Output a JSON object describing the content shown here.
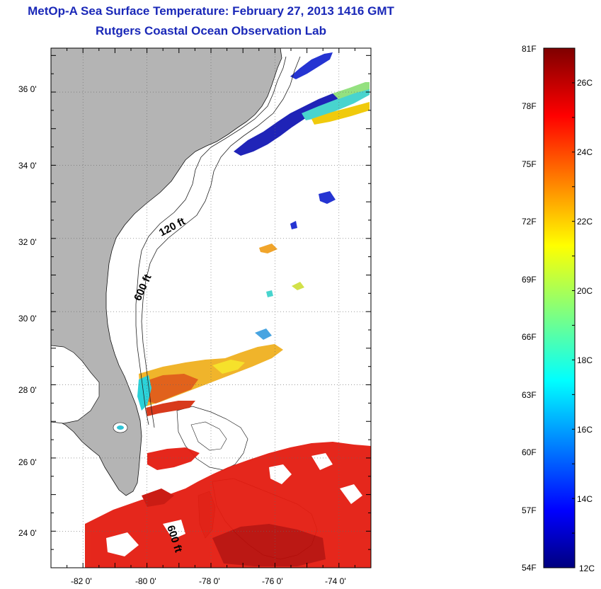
{
  "title": {
    "line1": "MetOp-A Sea Surface Temperature:  February 27, 2013 1416 GMT",
    "line2": "Rutgers Coastal Ocean Observation Lab"
  },
  "map": {
    "lat_ticks": [
      "36 0'",
      "34 0'",
      "32 0'",
      "30 0'",
      "28 0'",
      "26 0'",
      "24 0'"
    ],
    "lon_ticks": [
      "-82 0'",
      "-80 0'",
      "-78 0'",
      "-76 0'",
      "-74 0'"
    ],
    "lat_range": [
      23.0,
      37.2
    ],
    "lon_range": [
      -83.0,
      -73.0
    ],
    "land_color": "#b4b4b4",
    "isobaths": [
      "120 ft",
      "600 ft"
    ],
    "isobath_label_south": "600 ft"
  },
  "colorbar": {
    "f_labels": [
      "81F",
      "78F",
      "75F",
      "72F",
      "69F",
      "66F",
      "63F",
      "60F",
      "57F",
      "54F"
    ],
    "c_labels": [
      "26C",
      "24C",
      "22C",
      "20C",
      "18C",
      "16C",
      "14C",
      "12C"
    ],
    "c_range": [
      12,
      27
    ]
  }
}
